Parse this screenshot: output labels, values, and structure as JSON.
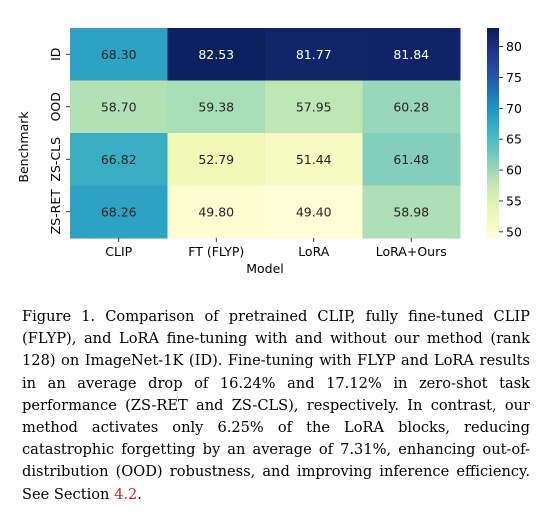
{
  "chart_data": {
    "type": "heatmap",
    "title": "",
    "xlabel": "Model",
    "ylabel": "Benchmark",
    "x_categories": [
      "CLIP",
      "FT (FLYP)",
      "LoRA",
      "LoRA+Ours"
    ],
    "y_categories": [
      "ID",
      "OOD",
      "ZS-CLS",
      "ZS-RET"
    ],
    "values": [
      [
        68.3,
        82.53,
        81.77,
        81.84
      ],
      [
        58.7,
        59.38,
        57.95,
        60.28
      ],
      [
        66.82,
        52.79,
        51.44,
        61.48
      ],
      [
        68.26,
        49.8,
        49.4,
        58.98
      ]
    ],
    "value_labels": [
      [
        "68.30",
        "82.53",
        "81.77",
        "81.84"
      ],
      [
        "58.70",
        "59.38",
        "57.95",
        "60.28"
      ],
      [
        "66.82",
        "52.79",
        "51.44",
        "61.48"
      ],
      [
        "68.26",
        "49.80",
        "49.40",
        "58.98"
      ]
    ],
    "colorbar": {
      "min": 49.0,
      "max": 83.0,
      "ticks": [
        50,
        55,
        60,
        65,
        70,
        75,
        80
      ],
      "tick_labels": [
        "50",
        "55",
        "60",
        "65",
        "70",
        "75",
        "80"
      ],
      "colormap": "YlGnBu"
    },
    "grid": false,
    "legend": "colorbar-right"
  },
  "caption": {
    "text_before_ref": "Figure 1.  Comparison of pretrained CLIP, fully fine-tuned CLIP (FLYP), and LoRA fine-tuning with and without our method (rank 128) on ImageNet-1K (ID). Fine-tuning with FLYP and LoRA results in an average drop of 16.24% and 17.12% in zero-shot task performance (ZS-RET and ZS-CLS), respectively.  In contrast, our method activates only 6.25% of the LoRA blocks, reducing catastrophic forgetting by an average of 7.31%, enhancing out-of-distribution (OOD) robustness, and improving inference efficiency. See Section ",
    "ref": "4.2",
    "text_after_ref": "."
  },
  "colors": {
    "ref_link": "#d21f1f",
    "text": "#000000"
  }
}
